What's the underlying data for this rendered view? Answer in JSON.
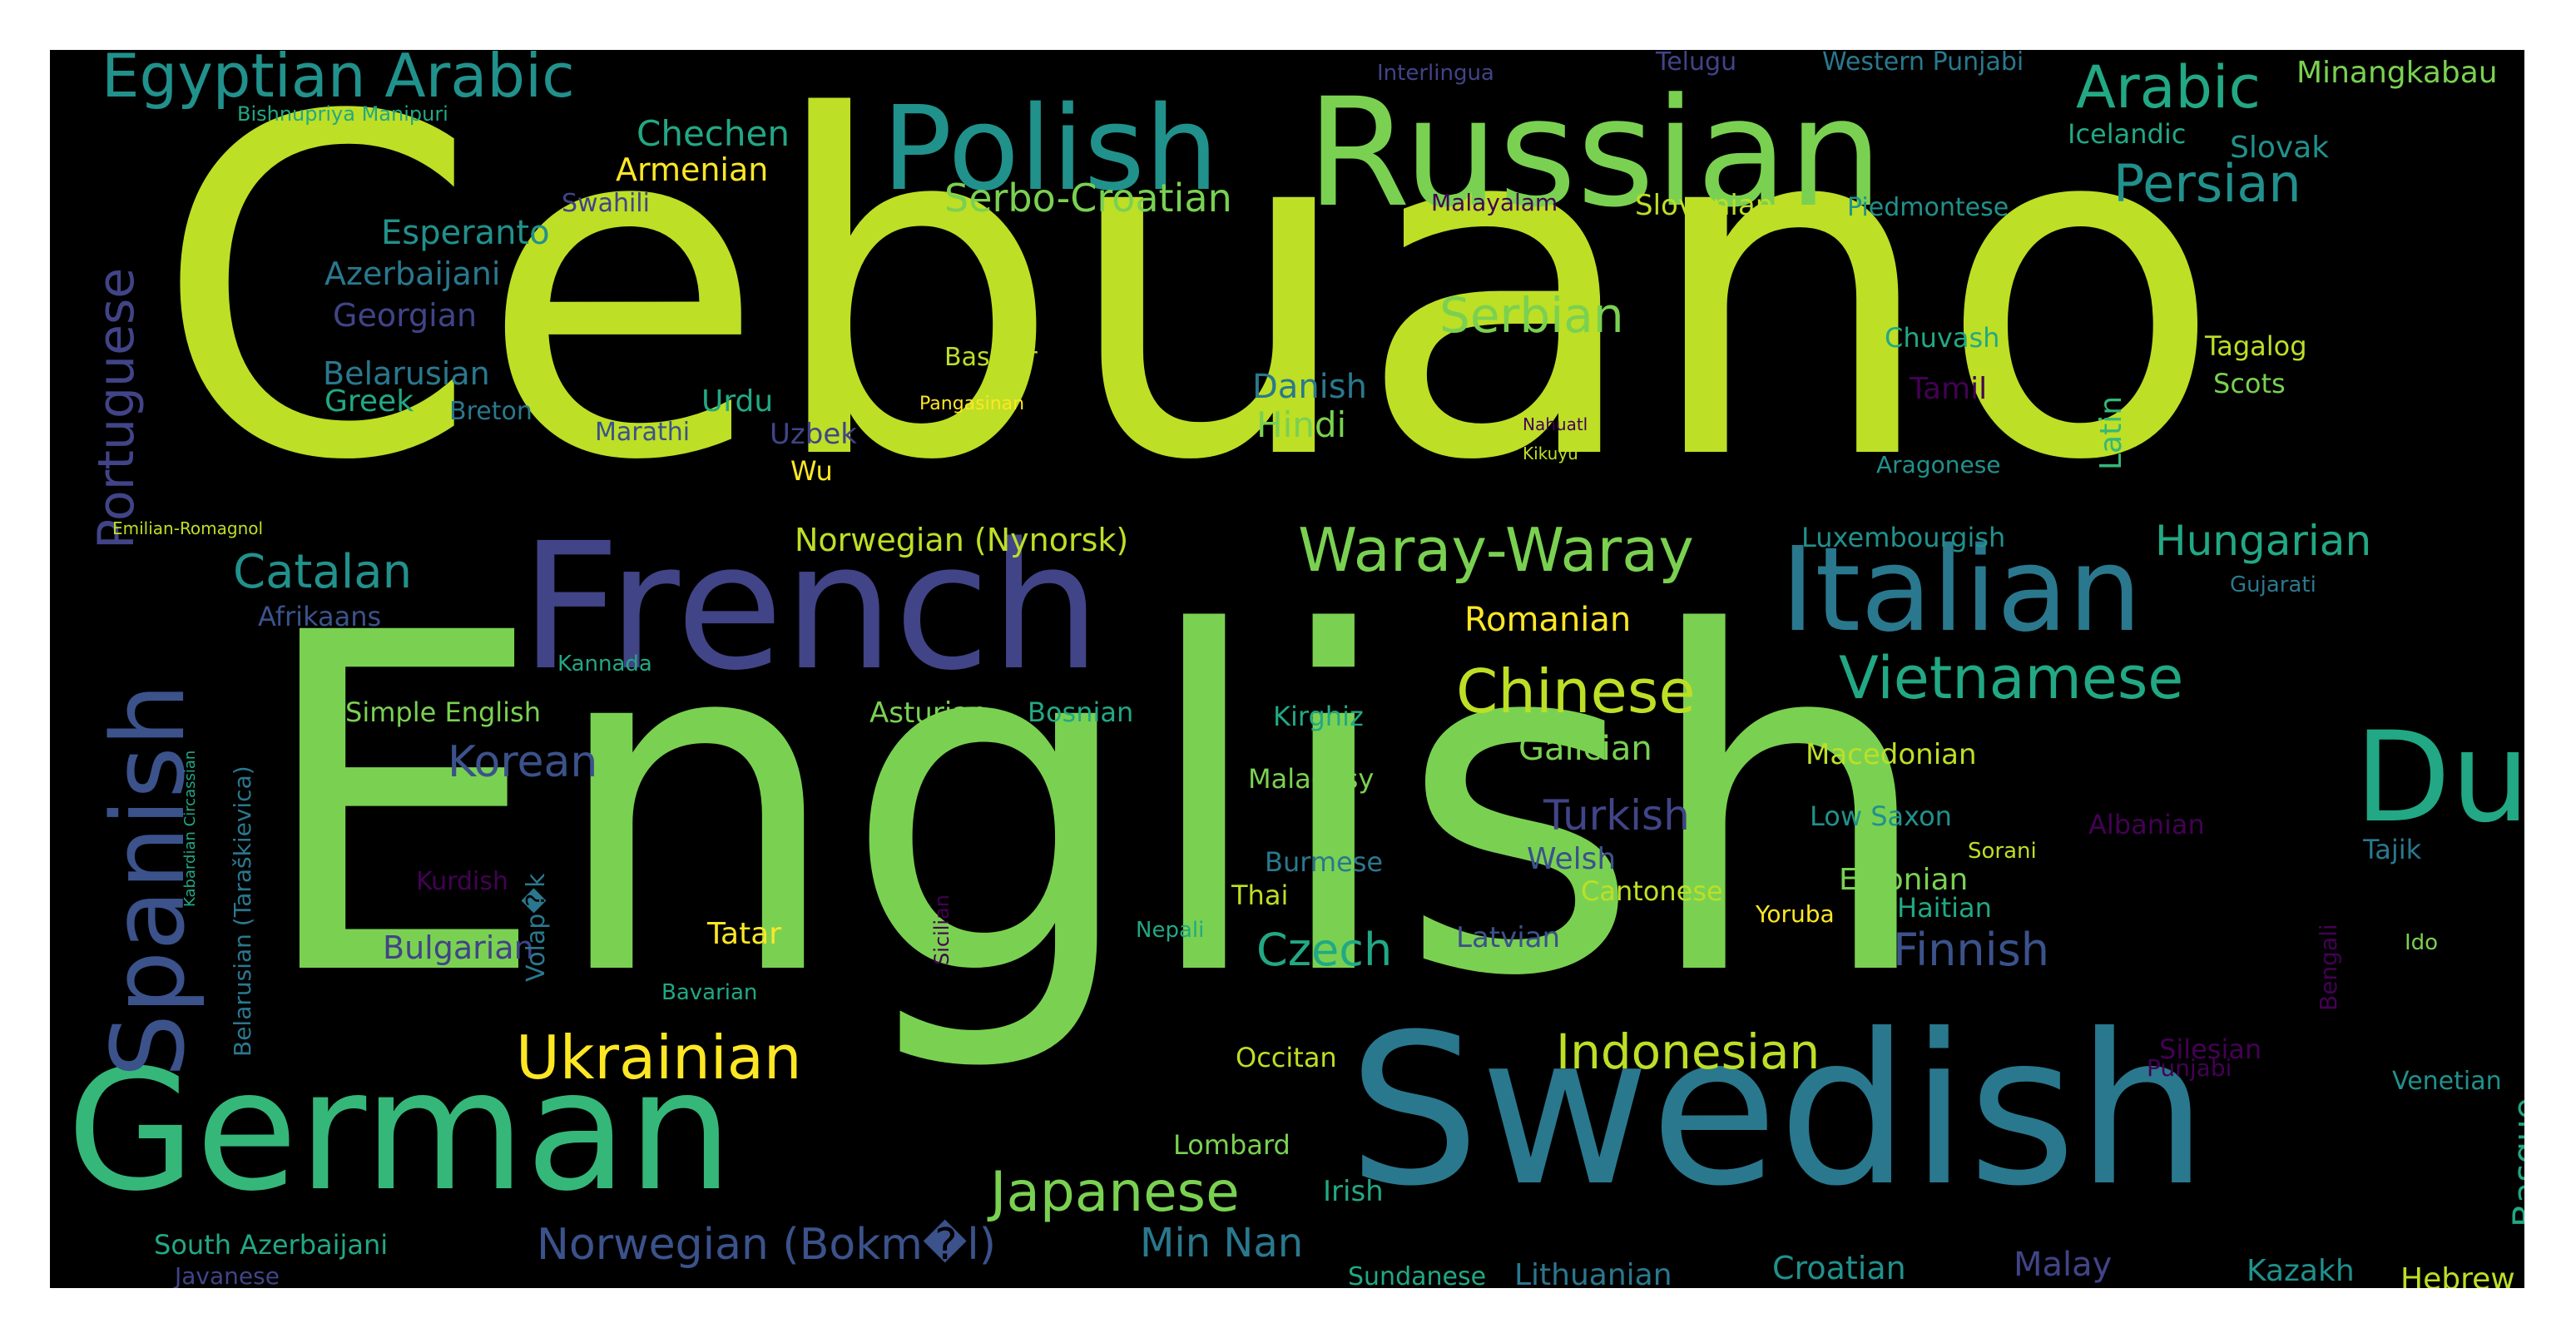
{
  "palette": {
    "a": "#bddf26",
    "b": "#7ad151",
    "c": "#2a788e",
    "d": "#414487",
    "e": "#22a884",
    "f": "#fde725",
    "g": "#35b779",
    "h": "#440154",
    "i": "#3b528b",
    "j": "#21918c"
  },
  "words": [
    {
      "t": "Cebuano",
      "c": "a"
    },
    {
      "t": "English",
      "c": "b"
    },
    {
      "t": "Swedish",
      "c": "c"
    },
    {
      "t": "German",
      "c": "g"
    },
    {
      "t": "Russian",
      "c": "b"
    },
    {
      "t": "French",
      "c": "d"
    },
    {
      "t": "Dutch",
      "c": "e"
    },
    {
      "t": "Polish",
      "c": "j"
    },
    {
      "t": "Italian",
      "c": "c"
    },
    {
      "t": "Spanish",
      "c": "i"
    },
    {
      "t": "Portuguese",
      "c": "d"
    },
    {
      "t": "Egyptian Arabic",
      "c": "j"
    },
    {
      "t": "Arabic",
      "c": "e"
    },
    {
      "t": "Waray-Waray",
      "c": "b"
    },
    {
      "t": "Vietnamese",
      "c": "e"
    },
    {
      "t": "Ukrainian",
      "c": "f"
    },
    {
      "t": "Japanese",
      "c": "b"
    },
    {
      "t": "Chinese",
      "c": "a"
    },
    {
      "t": "Indonesian",
      "c": "a"
    },
    {
      "t": "Catalan",
      "c": "j"
    },
    {
      "t": "Persian",
      "c": "j"
    },
    {
      "t": "Hungarian",
      "c": "e"
    },
    {
      "t": "Serbian",
      "c": "b"
    },
    {
      "t": "Korean",
      "c": "i"
    },
    {
      "t": "Serbo-Croatian",
      "c": "b"
    },
    {
      "t": "Czech",
      "c": "e"
    },
    {
      "t": "Turkish",
      "c": "d"
    },
    {
      "t": "Finnish",
      "c": "i"
    },
    {
      "t": "Norwegian (Bokm�l)",
      "c": "i"
    },
    {
      "t": "Min Nan",
      "c": "c"
    },
    {
      "t": "Romanian",
      "c": "f"
    },
    {
      "t": "Chechen",
      "c": "e"
    },
    {
      "t": "Armenian",
      "c": "f"
    },
    {
      "t": "Esperanto",
      "c": "j"
    },
    {
      "t": "Azerbaijani",
      "c": "c"
    },
    {
      "t": "Minangkabau",
      "c": "b"
    },
    {
      "t": "Galician",
      "c": "b"
    },
    {
      "t": "Norwegian (Nynorsk)",
      "c": "a"
    },
    {
      "t": "Belarusian",
      "c": "c"
    },
    {
      "t": "Georgian",
      "c": "d"
    },
    {
      "t": "Greek",
      "c": "e"
    },
    {
      "t": "Hindi",
      "c": "b"
    },
    {
      "t": "Danish",
      "c": "c"
    },
    {
      "t": "Bulgarian",
      "c": "d"
    },
    {
      "t": "Tatar",
      "c": "f"
    },
    {
      "t": "Basque",
      "c": "e"
    },
    {
      "t": "Estonian",
      "c": "b"
    },
    {
      "t": "Slovenian",
      "c": "a"
    },
    {
      "t": "Slovak",
      "c": "j"
    },
    {
      "t": "Latin",
      "c": "g"
    },
    {
      "t": "Malay",
      "c": "d"
    },
    {
      "t": "Kazakh",
      "c": "j"
    },
    {
      "t": "Hebrew",
      "c": "a"
    },
    {
      "t": "Lithuanian",
      "c": "c"
    },
    {
      "t": "Croatian",
      "c": "j"
    },
    {
      "t": "Sundanese",
      "c": "e"
    },
    {
      "t": "Welsh",
      "c": "i"
    },
    {
      "t": "Macedonian",
      "c": "a"
    },
    {
      "t": "Urdu",
      "c": "e"
    },
    {
      "t": "Uzbek",
      "c": "d"
    },
    {
      "t": "Tamil",
      "c": "h"
    },
    {
      "t": "Tagalog",
      "c": "a"
    },
    {
      "t": "Chuvash",
      "c": "e"
    },
    {
      "t": "Scots",
      "c": "b"
    },
    {
      "t": "Latvian",
      "c": "i"
    },
    {
      "t": "Cantonese",
      "c": "a"
    },
    {
      "t": "Haitian",
      "c": "e"
    },
    {
      "t": "Low Saxon",
      "c": "j"
    },
    {
      "t": "Albanian",
      "c": "h"
    },
    {
      "t": "Tajik",
      "c": "c"
    },
    {
      "t": "Bashkir",
      "c": "a"
    },
    {
      "t": "Asturian",
      "c": "b"
    },
    {
      "t": "Bosnian",
      "c": "e"
    },
    {
      "t": "Kirghiz",
      "c": "e"
    },
    {
      "t": "Occitan",
      "c": "a"
    },
    {
      "t": "Burmese",
      "c": "c"
    },
    {
      "t": "Thai",
      "c": "a"
    },
    {
      "t": "Malagasy",
      "c": "b"
    },
    {
      "t": "Simple English",
      "c": "b"
    },
    {
      "t": "Luxembourgish",
      "c": "j"
    },
    {
      "t": "Afrikaans",
      "c": "i"
    },
    {
      "t": "Kannada",
      "c": "e"
    },
    {
      "t": "Marathi",
      "c": "i"
    },
    {
      "t": "Breton",
      "c": "c"
    },
    {
      "t": "Kurdish",
      "c": "h"
    },
    {
      "t": "Volap�k",
      "c": "c"
    },
    {
      "t": "Wu",
      "c": "f"
    },
    {
      "t": "Irish",
      "c": "e"
    },
    {
      "t": "Lombard",
      "c": "b"
    },
    {
      "t": "Swahili",
      "c": "d"
    },
    {
      "t": "Venetian",
      "c": "j"
    },
    {
      "t": "Silesian",
      "c": "h"
    },
    {
      "t": "Punjabi",
      "c": "h"
    },
    {
      "t": "Icelandic",
      "c": "e"
    },
    {
      "t": "Piedmontese",
      "c": "j"
    },
    {
      "t": "Aragonese",
      "c": "j"
    },
    {
      "t": "Telugu",
      "c": "d"
    },
    {
      "t": "Western Punjabi",
      "c": "c"
    },
    {
      "t": "Yoruba",
      "c": "f"
    },
    {
      "t": "South Azerbaijani",
      "c": "e"
    },
    {
      "t": "Javanese",
      "c": "d"
    },
    {
      "t": "Gujarati",
      "c": "c"
    },
    {
      "t": "Sorani",
      "c": "a"
    },
    {
      "t": "Ido",
      "c": "b"
    },
    {
      "t": "Bengali",
      "c": "h"
    },
    {
      "t": "Pangasinan",
      "c": "f"
    },
    {
      "t": "Bavarian",
      "c": "e"
    },
    {
      "t": "Nepali",
      "c": "e"
    },
    {
      "t": "Sicilian",
      "c": "h"
    },
    {
      "t": "Malayalam",
      "c": "h"
    },
    {
      "t": "Interlingua",
      "c": "d"
    },
    {
      "t": "Bishnupriya Manipuri",
      "c": "e"
    },
    {
      "t": "Emilian-Romagnol",
      "c": "a"
    },
    {
      "t": "Kikuyu",
      "c": "a"
    },
    {
      "t": "Nahuatl",
      "c": "h"
    },
    {
      "t": "Belarusian (Taraškievica)",
      "c": "c"
    },
    {
      "t": "Kabardian Circassian",
      "c": "e"
    }
  ]
}
